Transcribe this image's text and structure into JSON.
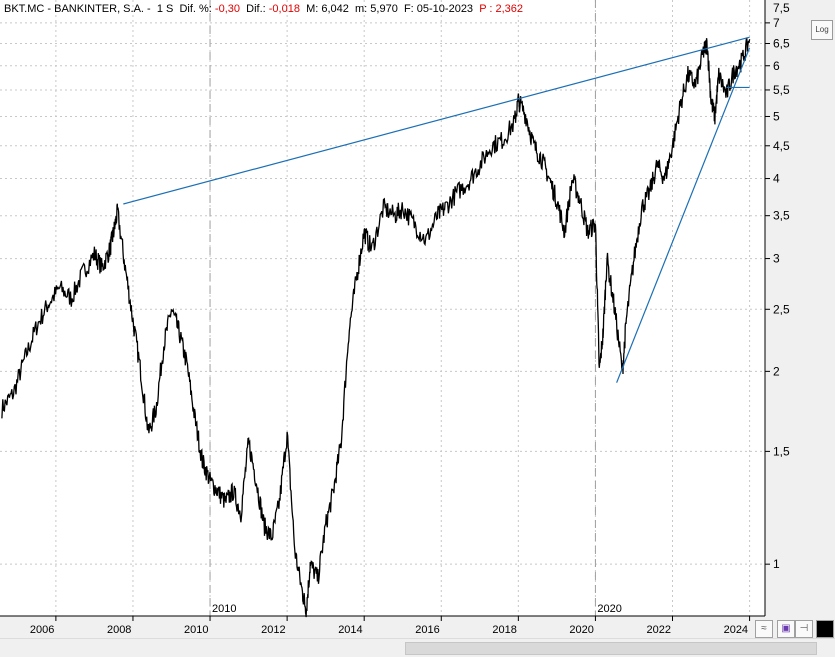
{
  "header": {
    "symbol": "BKT.MC - BANKINTER, S.A. -",
    "period": "1 S",
    "dif_pct_label": "Dif. %:",
    "dif_pct_value": "-0,30",
    "dif_label": "Dif.:",
    "dif_value": "-0,018",
    "m_label": "M: 6,042",
    "min_label": "m: 5,970",
    "date_label": "F: 05-10-2023",
    "p_label": "P : 2,362"
  },
  "buttons": {
    "log_label": "Log",
    "fit_label": "≈",
    "save_label": "▣",
    "pin_label": "⊣",
    "color_label": ""
  },
  "chart_data": {
    "type": "line",
    "scale": "log",
    "ylim": [
      0.83,
      7.6
    ],
    "xlim": [
      2004.55,
      2024.4
    ],
    "y_ticks": [
      1,
      1.5,
      2,
      2.5,
      3,
      3.5,
      4,
      4.5,
      5,
      5.5,
      6,
      6.5,
      7
    ],
    "y_tick_labels": [
      "1",
      "1,5",
      "2",
      "2,5",
      "3",
      "3,5",
      "4",
      "4,5",
      "5",
      "5,5",
      "6",
      "6,5",
      "7"
    ],
    "y_top_partial_label": "7,5",
    "x_ticks": [
      2006,
      2008,
      2010,
      2012,
      2014,
      2016,
      2018,
      2020,
      2022,
      2024
    ],
    "x_tick_labels": [
      "2006",
      "2008",
      "2010",
      "2012",
      "2014",
      "2016",
      "2018",
      "2020",
      "2022",
      "2024"
    ],
    "decade_markers": [
      2010,
      2020
    ],
    "decade_marker_labels": [
      "2010",
      "2020"
    ],
    "grid": true,
    "series": [
      {
        "x": [
          2004.6,
          2004.9,
          2005.2,
          2005.5,
          2005.8,
          2006.1,
          2006.4,
          2006.7,
          2007.0,
          2007.2,
          2007.4,
          2007.5,
          2007.6,
          2007.8,
          2008.0,
          2008.2,
          2008.4,
          2008.6,
          2008.8,
          2009.0,
          2009.2,
          2009.4,
          2009.6,
          2009.8,
          2010.0,
          2010.2,
          2010.4,
          2010.6,
          2010.8,
          2011.0,
          2011.2,
          2011.4,
          2011.6,
          2011.8,
          2012.0,
          2012.2,
          2012.4,
          2012.5,
          2012.6,
          2012.8,
          2013.0,
          2013.2,
          2013.4,
          2013.6,
          2013.8,
          2014.0,
          2014.2,
          2014.5,
          2014.8,
          2015.0,
          2015.3,
          2015.6,
          2015.9,
          2016.1,
          2016.4,
          2016.7,
          2017.0,
          2017.3,
          2017.6,
          2017.9,
          2018.0,
          2018.2,
          2018.4,
          2018.6,
          2018.8,
          2019.0,
          2019.2,
          2019.4,
          2019.6,
          2019.8,
          2020.0,
          2020.1,
          2020.2,
          2020.3,
          2020.5,
          2020.7,
          2020.8,
          2021.0,
          2021.2,
          2021.4,
          2021.6,
          2021.8,
          2022.0,
          2022.2,
          2022.4,
          2022.6,
          2022.8,
          2022.9,
          2023.0,
          2023.1,
          2023.2,
          2023.4,
          2023.6,
          2023.8,
          2024.0
        ],
        "y": [
          1.75,
          1.85,
          2.1,
          2.35,
          2.55,
          2.7,
          2.6,
          2.85,
          3.05,
          2.9,
          3.1,
          3.3,
          3.55,
          2.9,
          2.4,
          2.0,
          1.6,
          1.75,
          2.2,
          2.5,
          2.3,
          2.05,
          1.7,
          1.45,
          1.35,
          1.3,
          1.25,
          1.3,
          1.2,
          1.55,
          1.35,
          1.15,
          1.1,
          1.25,
          1.6,
          1.05,
          0.9,
          0.85,
          1.0,
          0.95,
          1.15,
          1.3,
          1.55,
          2.3,
          2.8,
          3.3,
          3.1,
          3.6,
          3.5,
          3.6,
          3.4,
          3.2,
          3.5,
          3.6,
          3.8,
          3.95,
          4.2,
          4.5,
          4.6,
          4.9,
          5.3,
          5.0,
          4.5,
          4.3,
          4.0,
          3.7,
          3.3,
          4.0,
          3.7,
          3.3,
          3.4,
          2.0,
          2.3,
          3.0,
          2.5,
          2.0,
          2.4,
          3.0,
          3.6,
          3.8,
          4.2,
          4.0,
          4.5,
          5.2,
          5.8,
          5.6,
          6.3,
          6.5,
          5.3,
          5.0,
          5.8,
          5.4,
          5.9,
          6.1,
          6.6
        ]
      }
    ],
    "trendlines": [
      {
        "x": [
          2007.75,
          2024.0
        ],
        "y": [
          3.65,
          6.65
        ]
      },
      {
        "x": [
          2020.55,
          2024.0
        ],
        "y": [
          1.92,
          6.4
        ]
      },
      {
        "x": [
          2023.4,
          2024.0
        ],
        "y": [
          5.55,
          5.55
        ]
      }
    ]
  }
}
